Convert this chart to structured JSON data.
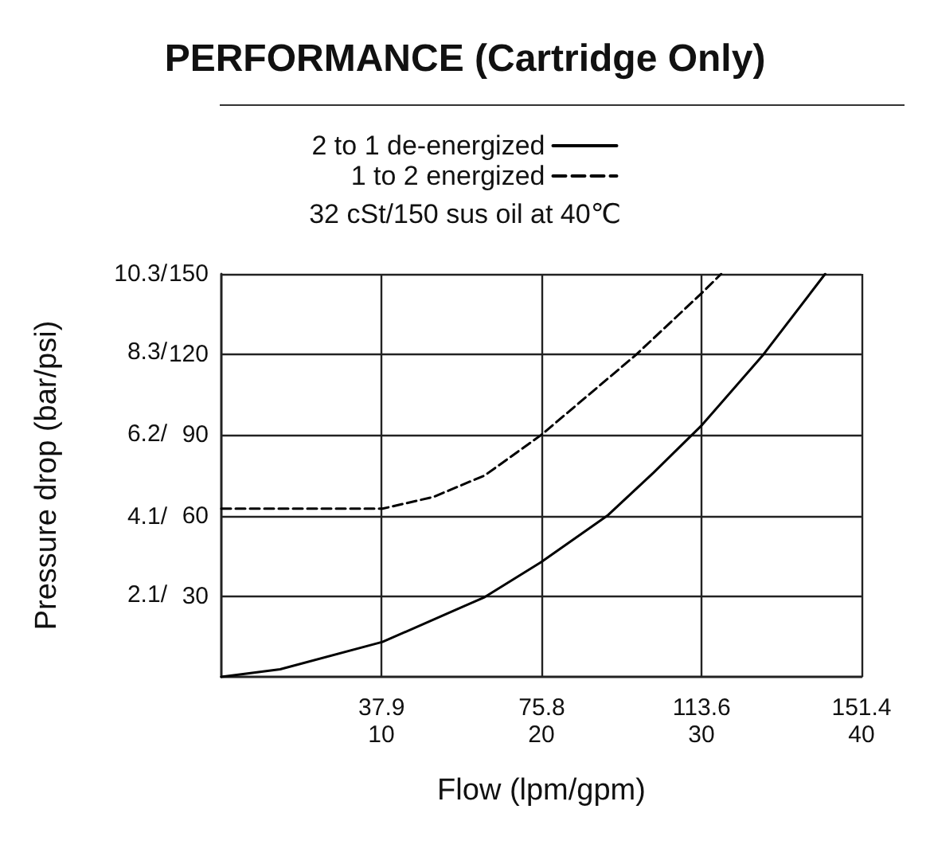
{
  "chart_data": {
    "type": "line",
    "title": "PERFORMANCE (Cartridge Only)",
    "annotations": [
      "32 cSt/150 sus oil at 40℃"
    ],
    "xlabel": "Flow (lpm/gpm)",
    "y2label": "Pressure drop (bar/psi)",
    "series": [
      {
        "name": "2 to 1 de-energized",
        "color": "#000000",
        "line_style": "solid",
        "x": [
          0,
          13.9,
          38.1,
          62.3,
          75.6,
          91.3,
          102.2,
          113.7,
          128.2,
          142.8
        ],
        "values": [
          0,
          2.8,
          13,
          29.7,
          42.7,
          60,
          76,
          93.8,
          120,
          150
        ]
      },
      {
        "name": "1 to 2 energized",
        "color": "#000000",
        "line_style": "dashed",
        "x": [
          0,
          38.1,
          50.2,
          62.3,
          75.6,
          98,
          113.7,
          118.2
        ],
        "values": [
          62.6,
          62.6,
          67,
          75,
          90,
          119.8,
          143,
          150
        ]
      }
    ],
    "xlim": [
      0,
      151.4
    ],
    "xticks": [
      37.9,
      75.8,
      113.6,
      151.4
    ],
    "x2lim": [
      0,
      40
    ],
    "x2ticks": [
      10,
      20,
      30,
      40
    ],
    "ylim": [
      0,
      150
    ],
    "yticks": [
      30,
      60,
      90,
      120,
      150
    ],
    "y2lim": [
      0,
      10.3
    ],
    "y2ticks": [
      {
        "value": 2.1,
        "label": "2.1/"
      },
      {
        "value": 4.1,
        "label": "4.1/"
      },
      {
        "value": 6.2,
        "label": "6.2/"
      },
      {
        "value": 8.3,
        "label": "8.3/"
      },
      {
        "value": 10.3,
        "label": "10.3/"
      }
    ],
    "grid": true,
    "legend": "top",
    "marker": "none"
  }
}
